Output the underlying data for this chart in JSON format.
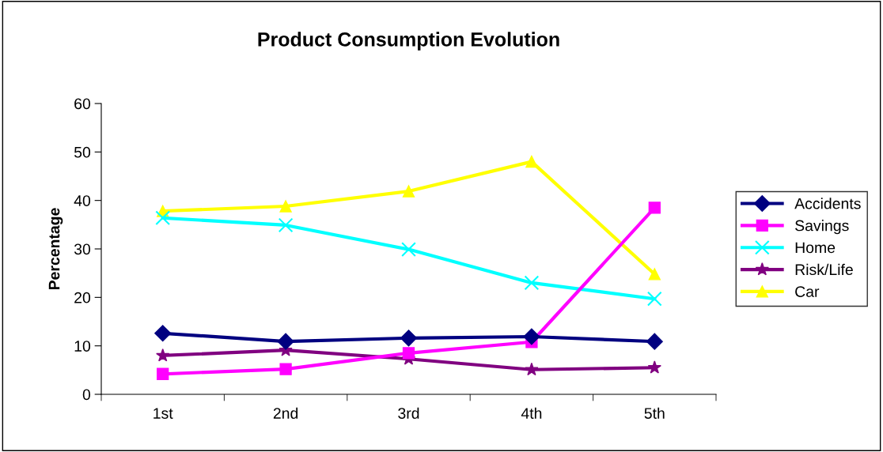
{
  "chart_data": {
    "type": "line",
    "title": "Product Consumption Evolution",
    "ylabel": "Percentage",
    "categories": [
      "1st",
      "2nd",
      "3rd",
      "4th",
      "5th"
    ],
    "series": [
      {
        "name": "Accidents",
        "color": "#000080",
        "marker": "diamond",
        "values": [
          12.6,
          10.9,
          11.6,
          11.9,
          10.9
        ]
      },
      {
        "name": "Savings",
        "color": "#ff00ff",
        "marker": "square",
        "values": [
          4.2,
          5.2,
          8.5,
          10.8,
          38.5
        ]
      },
      {
        "name": "Home",
        "color": "#00ffff",
        "marker": "cross",
        "values": [
          36.4,
          34.9,
          29.9,
          23.0,
          19.7
        ]
      },
      {
        "name": "Risk/Life",
        "color": "#800080",
        "marker": "star",
        "values": [
          8.0,
          9.1,
          7.3,
          5.1,
          5.5
        ]
      },
      {
        "name": "Car",
        "color": "#ffff00",
        "marker": "triangle",
        "values": [
          37.8,
          38.8,
          41.9,
          48.0,
          24.8
        ]
      }
    ],
    "ylim": [
      0,
      60
    ],
    "yticks": [
      0,
      10,
      20,
      30,
      40,
      50,
      60
    ],
    "grid": false,
    "legend": "right",
    "line_style": "solid"
  }
}
